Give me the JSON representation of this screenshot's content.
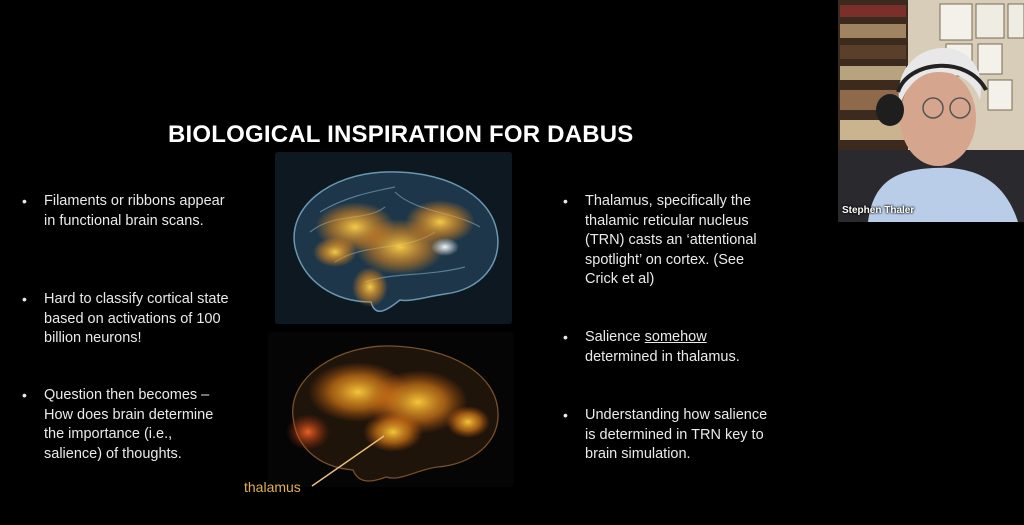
{
  "slide": {
    "title": "BIOLOGICAL INSPIRATION FOR DABUS",
    "left_bullets": [
      "Filaments or ribbons appear in functional brain scans.",
      "Hard to classify cortical state based on activations of 100 billion neurons!",
      "Question then becomes – How does brain determine the importance (i.e., salience) of thoughts."
    ],
    "right_bullets": [
      "Thalamus, specifically the thalamic reticular nucleus (TRN) casts an ‘attentional spotlight’ on cortex. (See Crick et al)",
      {
        "before": "Salience ",
        "underlined": "somehow",
        "after": " determined in thalamus."
      },
      "Understanding how salience is determined in TRN key to brain simulation."
    ],
    "thalamus_label": "thalamus",
    "bullet_char": "•"
  },
  "webcam": {
    "participant_name": "Stephen Thaler"
  },
  "colors": {
    "background": "#000000",
    "text": "#f2f2f2",
    "thalamus_label": "#e2b14c"
  }
}
